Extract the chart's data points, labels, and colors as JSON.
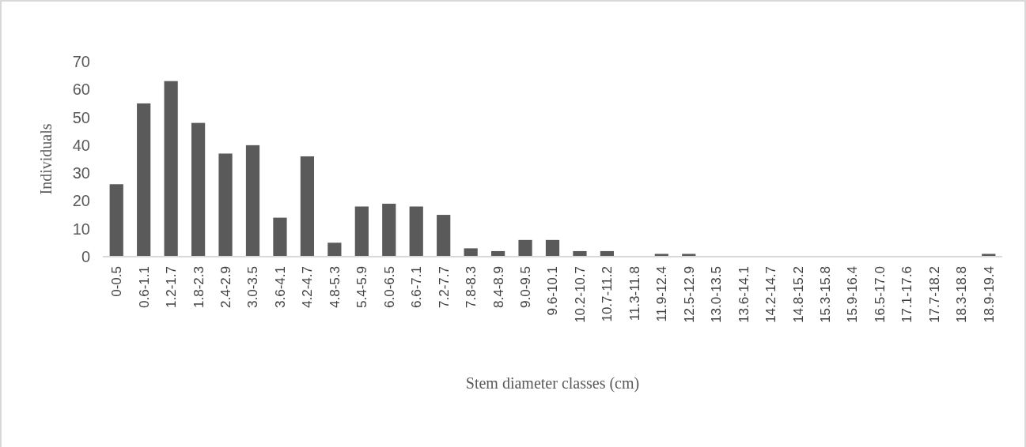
{
  "chart_data": {
    "type": "bar",
    "xlabel": "Stem diameter classes (cm)",
    "ylabel": "Individuals",
    "categories": [
      "0-0.5",
      "0.6-1.1",
      "1.2-1.7",
      "1.8-2.3",
      "2.4-2.9",
      "3.0-3.5",
      "3.6-4.1",
      "4.2-4.7",
      "4.8-5.3",
      "5.4-5.9",
      "6.0-6.5",
      "6.6-7.1",
      "7.2-7.7",
      "7.8-8.3",
      "8.4-8.9",
      "9.0-9.5",
      "9.6-10.1",
      "10.2-10.7",
      "10.7-11.2",
      "11.3-11.8",
      "11.9-12.4",
      "12.5-12.9",
      "13.0-13.5",
      "13.6-14.1",
      "14.2-14.7",
      "14.8-15.2",
      "15.3-15.8",
      "15.9-16.4",
      "16.5-17.0",
      "17.1-17.6",
      "17.7-18.2",
      "18.3-18.8",
      "18.9-19.4"
    ],
    "values": [
      26,
      55,
      63,
      48,
      37,
      40,
      14,
      36,
      5,
      18,
      19,
      18,
      15,
      3,
      2,
      6,
      6,
      2,
      2,
      0,
      1,
      1,
      0,
      0,
      0,
      0,
      0,
      0,
      0,
      0,
      0,
      0,
      1
    ],
    "color": "#5a5a5a",
    "ylim": [
      0,
      70
    ],
    "yticks": [
      0,
      10,
      20,
      30,
      40,
      50,
      60,
      70
    ],
    "grid": false
  }
}
